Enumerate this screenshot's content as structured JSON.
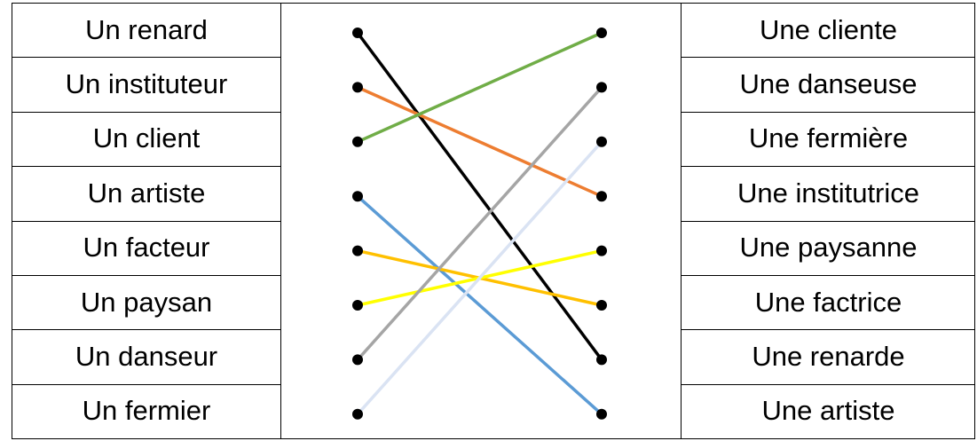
{
  "left_items": [
    "Un renard",
    "Un instituteur",
    "Un client",
    "Un artiste",
    "Un facteur",
    "Un paysan",
    "Un danseur",
    "Un fermier"
  ],
  "right_items": [
    "Une cliente",
    "Une danseuse",
    "Une fermière",
    "Une institutrice",
    "Une paysanne",
    "Une factrice",
    "Une renarde",
    "Une artiste"
  ],
  "matches": [
    {
      "from": 0,
      "to": 6,
      "color": "#000000"
    },
    {
      "from": 1,
      "to": 3,
      "color": "#ED7D31"
    },
    {
      "from": 2,
      "to": 0,
      "color": "#70AD47"
    },
    {
      "from": 3,
      "to": 7,
      "color": "#5B9BD5"
    },
    {
      "from": 4,
      "to": 5,
      "color": "#FFC000"
    },
    {
      "from": 5,
      "to": 4,
      "color": "#FFFF00"
    },
    {
      "from": 6,
      "to": 1,
      "color": "#A5A5A5"
    },
    {
      "from": 7,
      "to": 2,
      "color": "#DAE3F3"
    }
  ],
  "dot_color": "#000000"
}
